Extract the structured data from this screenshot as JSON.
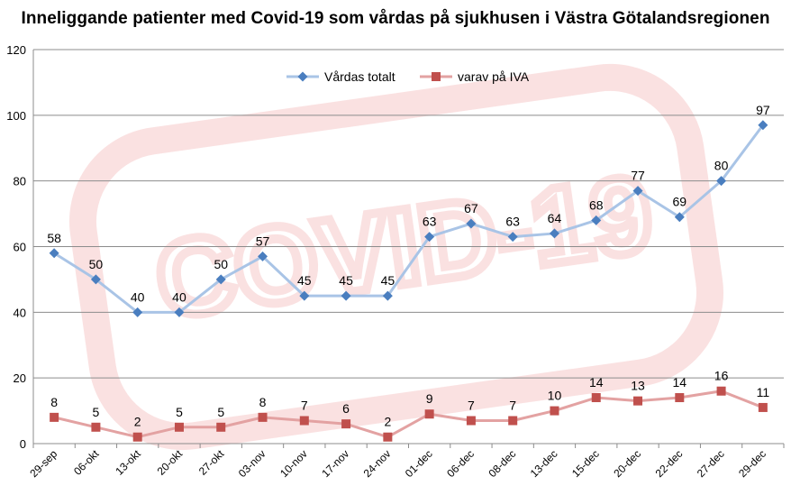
{
  "chart_data": {
    "type": "line",
    "title": "Inneliggande patienter med Covid-19 som vårdas på sjukhusen i Västra Götalandsregionen",
    "categories": [
      "29-sep",
      "06-okt",
      "13-okt",
      "20-okt",
      "27-okt",
      "03-nov",
      "10-nov",
      "17-nov",
      "24-nov",
      "01-dec",
      "06-dec",
      "08-dec",
      "13-dec",
      "15-dec",
      "20-dec",
      "22-dec",
      "27-dec",
      "29-dec"
    ],
    "series": [
      {
        "name": "Vårdas totalt",
        "values": [
          58,
          50,
          40,
          40,
          50,
          57,
          45,
          45,
          45,
          63,
          67,
          63,
          64,
          68,
          77,
          69,
          80,
          97
        ],
        "line_color": "#a9c4e6",
        "marker_color": "#4a7ebf",
        "marker": "diamond"
      },
      {
        "name": "varav på IVA",
        "values": [
          8,
          5,
          2,
          5,
          5,
          8,
          7,
          6,
          2,
          9,
          7,
          7,
          10,
          14,
          13,
          14,
          16,
          11
        ],
        "line_color": "#e3a2a2",
        "marker_color": "#c0504d",
        "marker": "square"
      }
    ],
    "ylim": [
      0,
      120
    ],
    "yticks": [
      0,
      20,
      40,
      60,
      80,
      100,
      120
    ],
    "grid": true,
    "legend_position": "top-center",
    "watermark": "COVID-19"
  }
}
